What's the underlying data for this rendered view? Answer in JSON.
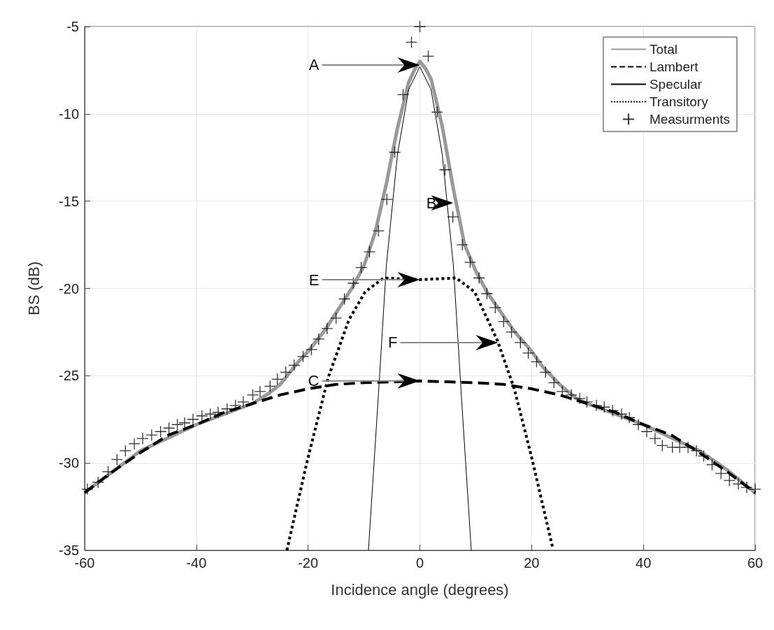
{
  "chart_data": {
    "type": "line",
    "xlabel": "Incidence angle (degrees)",
    "ylabel": "BS (dB)",
    "xlim": [
      -60,
      60
    ],
    "xticks": [
      -60,
      -40,
      -20,
      0,
      20,
      40,
      60
    ],
    "ylim": [
      -35,
      -5
    ],
    "yticks": [
      -35,
      -30,
      -25,
      -20,
      -15,
      -10,
      -5
    ],
    "grid": true,
    "legend": "top right",
    "series": [
      {
        "name": "Total",
        "type": "line",
        "color": "#999999",
        "line_style": "solid",
        "marker": "none",
        "x": [
          -60,
          -50,
          -40,
          -30,
          -27,
          -25,
          -22,
          -20,
          -17,
          -15,
          -12,
          -10,
          -8,
          -6,
          -4,
          -2,
          -1,
          0,
          1,
          2,
          4,
          6,
          8,
          10,
          12,
          15,
          17,
          20,
          22,
          25,
          28,
          30,
          40,
          50,
          55,
          60
        ],
        "values": [
          -31.7,
          -29.3,
          -27.8,
          -26.6,
          -26,
          -25.5,
          -24.3,
          -23.6,
          -22.4,
          -21.4,
          -19.9,
          -18.7,
          -16.8,
          -14,
          -10.8,
          -8.2,
          -7.5,
          -7,
          -7.4,
          -8,
          -10.7,
          -14.3,
          -17.5,
          -19,
          -20.2,
          -21.6,
          -22.5,
          -23.6,
          -24.5,
          -25.5,
          -26.3,
          -26.6,
          -27.8,
          -29.3,
          -30.4,
          -31.7
        ]
      },
      {
        "name": "Lambert",
        "type": "line",
        "color": "#000000",
        "line_style": "dashed",
        "marker": "none",
        "x": [
          -60,
          -55,
          -50,
          -45,
          -40,
          -35,
          -30,
          -25,
          -20,
          -15,
          -10,
          -5,
          0,
          5,
          10,
          15,
          20,
          25,
          30,
          35,
          40,
          45,
          50,
          55,
          60
        ],
        "values": [
          -31.7,
          -30.5,
          -29.4,
          -28.4,
          -27.8,
          -27.1,
          -26.6,
          -26.1,
          -25.75,
          -25.5,
          -25.4,
          -25.35,
          -25.3,
          -25.35,
          -25.4,
          -25.5,
          -25.75,
          -26.1,
          -26.6,
          -27.1,
          -27.8,
          -28.4,
          -29.4,
          -30.5,
          -31.7
        ]
      },
      {
        "name": "Specular",
        "type": "line",
        "color": "#000000",
        "line_style": "solid",
        "marker": "none",
        "x": [
          -9.2,
          -7.4,
          -6,
          -4,
          -2,
          0,
          2,
          4,
          6,
          7.4,
          9.2
        ],
        "values": [
          -35,
          -26,
          -18.7,
          -12.3,
          -8.6,
          -7.3,
          -8.6,
          -12.3,
          -18.7,
          -26,
          -35
        ]
      },
      {
        "name": "Transitory",
        "type": "line",
        "color": "#000000",
        "line_style": "dotted",
        "marker": "none",
        "x": [
          -23.8,
          -20.1,
          -16.4,
          -12.7,
          -9.8,
          -6.5,
          0,
          6.5,
          9.8,
          13.9,
          16.9,
          20.1,
          23.8
        ],
        "values": [
          -35,
          -29.8,
          -25.1,
          -21.8,
          -20.2,
          -19.4,
          -19.5,
          -19.4,
          -20.2,
          -23,
          -25.75,
          -29.8,
          -34.9
        ]
      },
      {
        "name": "Measurments",
        "type": "scatter",
        "color": "#000000",
        "marker": "cross",
        "x": [
          -59.5,
          -57.6,
          -55.8,
          -54.2,
          -52.7,
          -51.1,
          -49.6,
          -48,
          -46.4,
          -44.9,
          -43.4,
          -42.1,
          -40.6,
          -39,
          -37.5,
          -36.1,
          -34.5,
          -33,
          -31.6,
          -29.9,
          -28.6,
          -26.8,
          -25.5,
          -24,
          -22.5,
          -20.9,
          -19.4,
          -18.1,
          -16.6,
          -15,
          -13.5,
          -11.9,
          -10.5,
          -9,
          -7.4,
          -5.9,
          -4.5,
          -3,
          -1.5,
          0,
          1.5,
          3.1,
          4.5,
          5.9,
          7.6,
          9,
          10.6,
          12,
          13.5,
          15,
          16.4,
          18,
          19.4,
          20.9,
          22.5,
          24,
          25.5,
          27.1,
          28.6,
          29.9,
          31.6,
          33,
          34.5,
          36.1,
          37.5,
          39.1,
          40.6,
          42.1,
          43.4,
          45.2,
          46.5,
          48,
          49.5,
          50.8,
          52.3,
          53.9,
          55.4,
          57,
          58.5,
          60
        ],
        "values": [
          -31.5,
          -31.1,
          -30.5,
          -29.8,
          -29.3,
          -28.9,
          -28.6,
          -28.4,
          -28.2,
          -28,
          -27.8,
          -27.7,
          -27.5,
          -27.3,
          -27.2,
          -27.1,
          -26.9,
          -26.7,
          -26.5,
          -26.1,
          -25.9,
          -25.6,
          -25.2,
          -24.8,
          -24.4,
          -23.9,
          -23.5,
          -22.9,
          -22.3,
          -21.7,
          -20.6,
          -19.7,
          -18.8,
          -17.9,
          -16.7,
          -14.9,
          -12.2,
          -8.9,
          -5.9,
          -5,
          -6.7,
          -9.9,
          -13.2,
          -15.9,
          -17.5,
          -18.5,
          -19.4,
          -20.3,
          -21.1,
          -21.9,
          -22.5,
          -23.1,
          -23.7,
          -24.2,
          -24.8,
          -25.4,
          -25.9,
          -26.1,
          -26.3,
          -26.5,
          -26.7,
          -26.8,
          -27,
          -27.2,
          -27.4,
          -27.8,
          -28.2,
          -28.6,
          -29,
          -29.1,
          -29.1,
          -29.1,
          -29.3,
          -29.6,
          -30.1,
          -30.6,
          -31,
          -31.2,
          -31.4,
          -31.5
        ]
      }
    ],
    "annotations": [
      {
        "text": "A",
        "x": 0,
        "y": -7.2
      },
      {
        "text": "B",
        "x": 6,
        "y": -15.1
      },
      {
        "text": "C",
        "x": 0,
        "y": -25.3
      },
      {
        "text": "E",
        "x": 0,
        "y": -19.5
      },
      {
        "text": "F",
        "x": 14,
        "y": -23.1
      }
    ]
  }
}
